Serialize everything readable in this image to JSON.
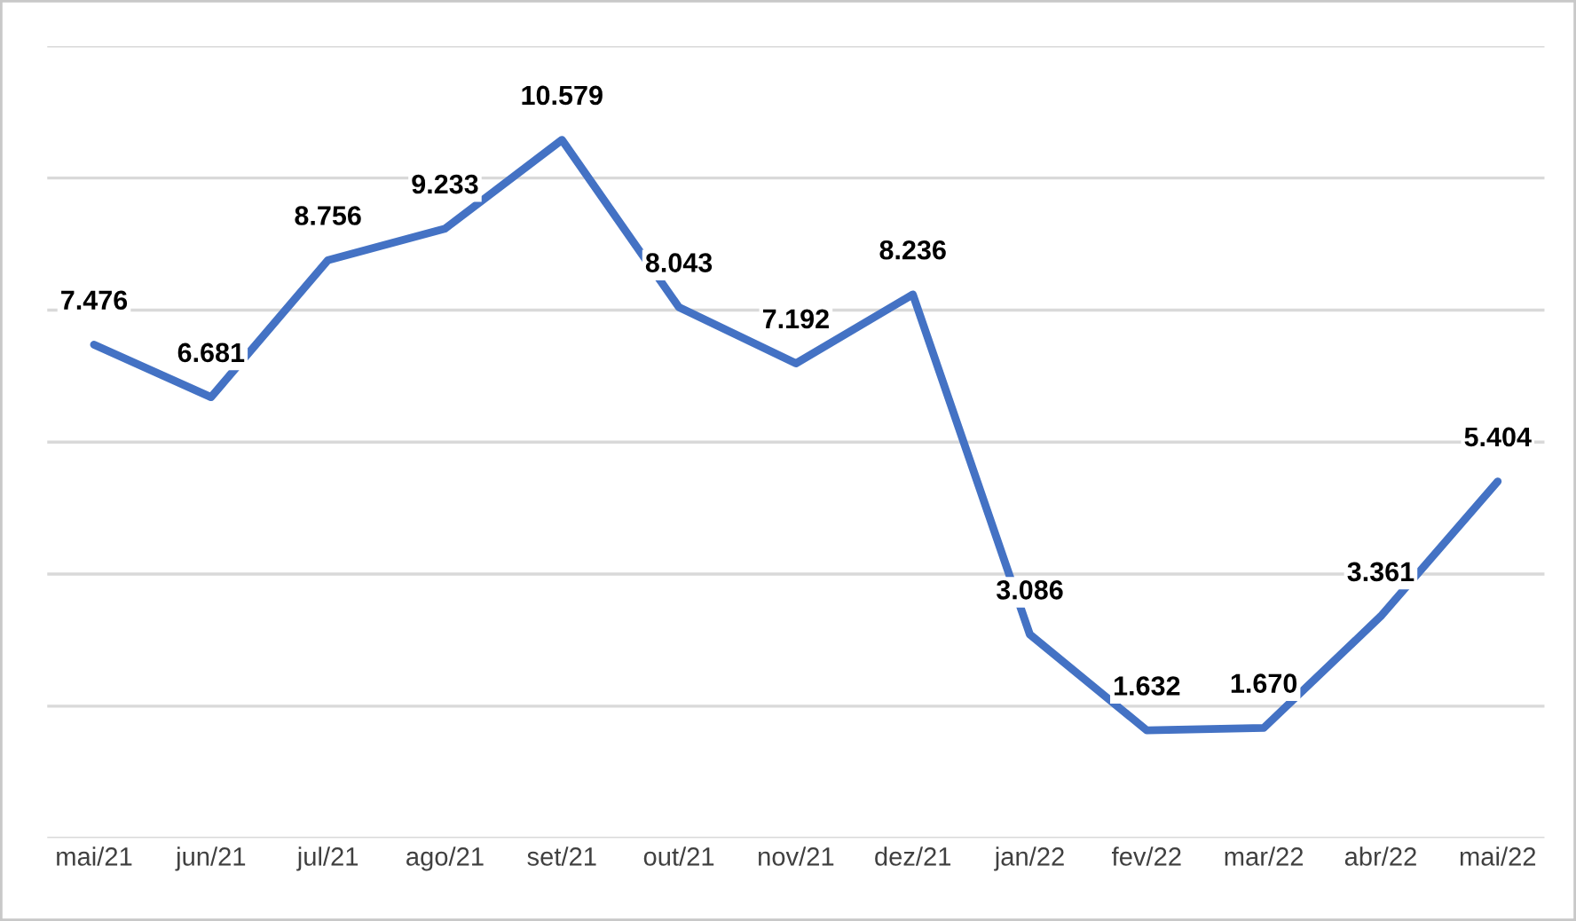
{
  "chart_data": {
    "type": "line",
    "categories": [
      "mai/21",
      "jun/21",
      "jul/21",
      "ago/21",
      "set/21",
      "out/21",
      "nov/21",
      "dez/21",
      "jan/22",
      "fev/22",
      "mar/22",
      "abr/22",
      "mai/22"
    ],
    "series": [
      {
        "color": "#4472c4",
        "values": [
          7.476,
          6.681,
          8.756,
          9.233,
          10.579,
          8.043,
          7.192,
          8.236,
          3.086,
          1.632,
          1.67,
          3.361,
          5.404
        ],
        "value_labels": [
          "7.476",
          "6.681",
          "8.756",
          "9.233",
          "10.579",
          "8.043",
          "7.192",
          "8.236",
          "3.086",
          "1.632",
          "1.670",
          "3.361",
          "5.404"
        ]
      }
    ],
    "ylim": [
      0,
      12
    ],
    "yticks": [
      {
        "value": 0,
        "label": null
      },
      {
        "value": 2,
        "label": null
      },
      {
        "value": 4,
        "label": null
      },
      {
        "value": 6,
        "label": null
      },
      {
        "value": 8,
        "label": null
      },
      {
        "value": 10,
        "label": null
      },
      {
        "value": 12,
        "label": null
      }
    ],
    "grid": "y",
    "tick_labels": "x",
    "marker": "none",
    "line_style": "solid",
    "legend": false
  }
}
